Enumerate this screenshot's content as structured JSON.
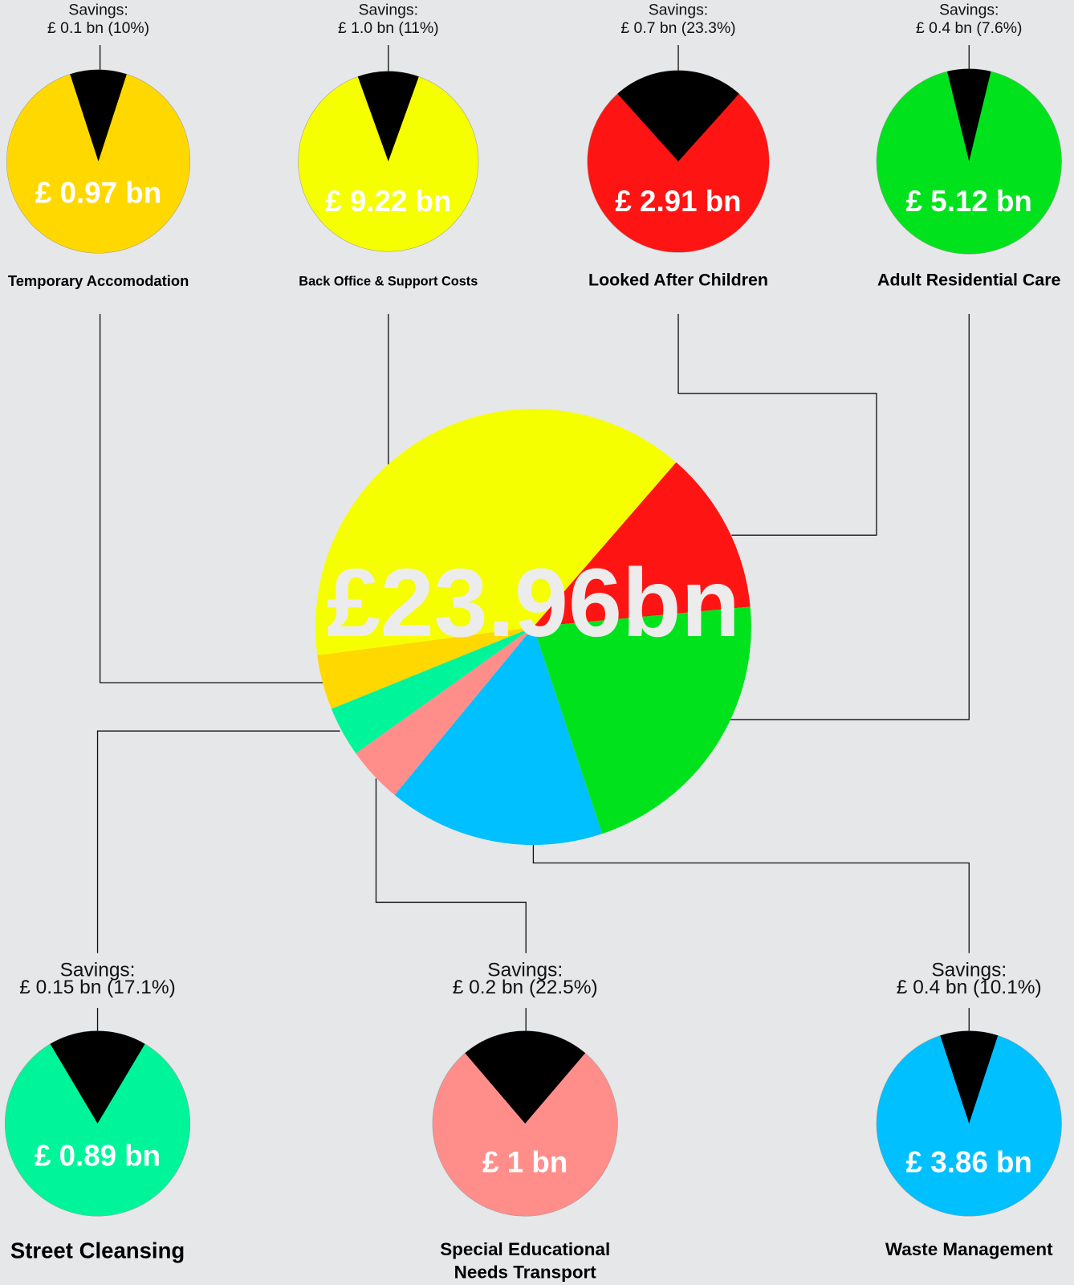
{
  "chart_data": {
    "type": "pie",
    "title": "£23.96bn",
    "savings_heading": "Savings:",
    "services": [
      {
        "name": [
          "Back Office & Support Costs"
        ],
        "color": "#f6ff00",
        "budget": 9.22,
        "budget_label": "£ 9.22 bn",
        "savings_label": "£ 1.0 bn (11%)",
        "savings_pct": 11
      },
      {
        "name": [
          "Looked After Children"
        ],
        "color": "#ff1414",
        "budget": 2.91,
        "budget_label": "£ 2.91 bn",
        "savings_label": "£ 0.7 bn (23.3%)",
        "savings_pct": 23.3
      },
      {
        "name": [
          "Adult Residential Care"
        ],
        "color": "#00e31c",
        "budget": 5.12,
        "budget_label": "£ 5.12 bn",
        "savings_label": "£ 0.4 bn (7.6%)",
        "savings_pct": 7.6
      },
      {
        "name": [
          "Waste Management"
        ],
        "color": "#00c0ff",
        "budget": 3.86,
        "budget_label": "£ 3.86 bn",
        "savings_label": "£ 0.4 bn (10.1%)",
        "savings_pct": 10.1
      },
      {
        "name": [
          "Special Educational",
          "Needs Transport"
        ],
        "color": "#ff8e8b",
        "budget": 1,
        "budget_label": "£ 1 bn",
        "savings_label": "£ 0.2 bn (22.5%)",
        "savings_pct": 22.5
      },
      {
        "name": [
          "Street Cleansing"
        ],
        "color": "#00f59a",
        "budget": 0.89,
        "budget_label": "£ 0.89 bn",
        "savings_label": "£ 0.15 bn (17.1%)",
        "savings_pct": 17.1
      },
      {
        "name": [
          "Temporary Accomodation"
        ],
        "color": "#ffd800",
        "budget": 0.97,
        "budget_label": "£ 0.97 bn",
        "savings_label": "£ 0.1 bn (10%)",
        "savings_pct": 10
      }
    ]
  }
}
